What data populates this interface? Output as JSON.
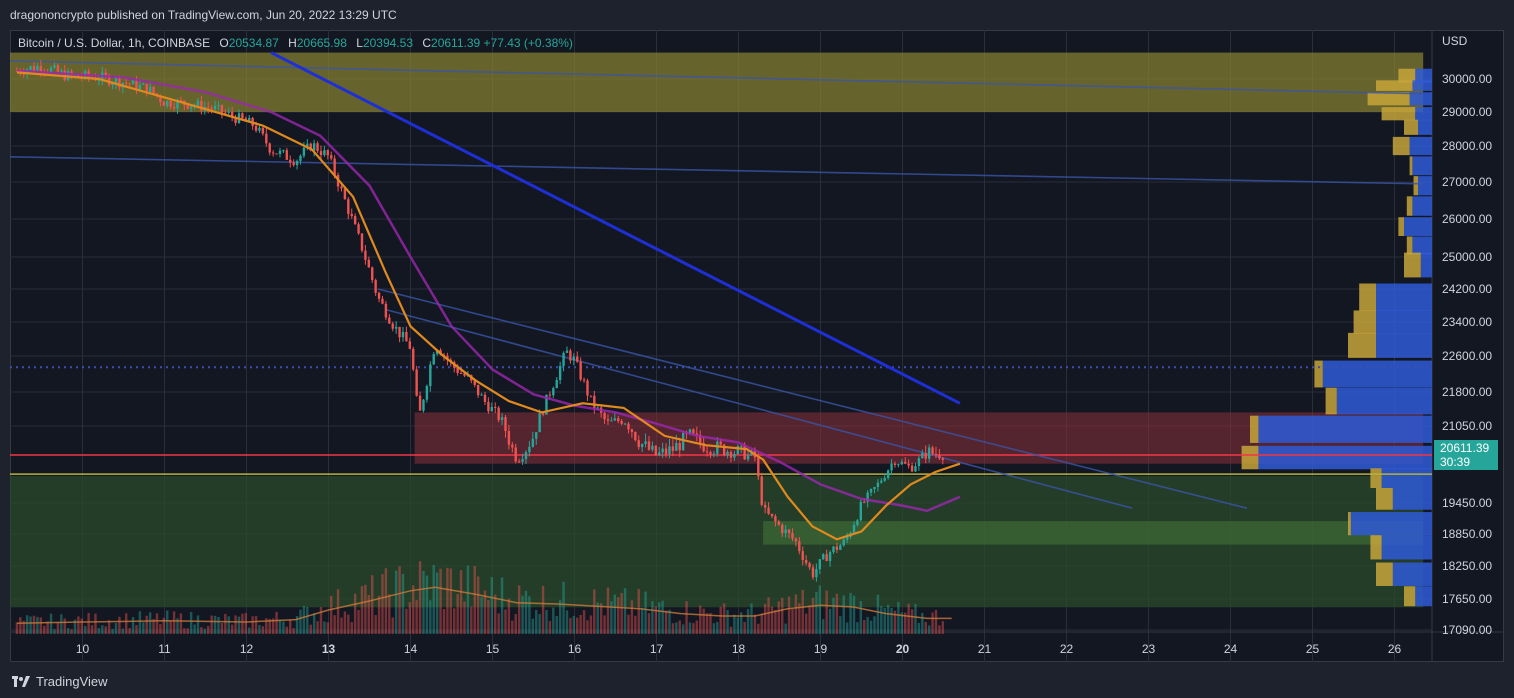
{
  "header": {
    "published": "dragononcrypto published on TradingView.com, Jun 20, 2022 13:29 UTC"
  },
  "legend": {
    "symbol": "Bitcoin / U.S. Dollar, 1h, COINBASE",
    "open_label": "O",
    "open": "20534.87",
    "high_label": "H",
    "high": "20665.98",
    "low_label": "L",
    "low": "20394.53",
    "close_label": "C",
    "close": "20611.39",
    "change": "+77.43 (+0.38%)"
  },
  "price_tag": {
    "price": "20611.39",
    "countdown": "30:39"
  },
  "footer": {
    "brand": "TradingView"
  },
  "colors": {
    "up": "#26a69a",
    "down": "#ef5350",
    "ema_short": "#e08a1e",
    "ema_long": "#9c27b0",
    "trend_blue": "#1e2fd6",
    "resistance_zone": "#7d7a2d",
    "demand_zone": "#2e4a2e",
    "last_price": "#f23645"
  },
  "chart_data": {
    "type": "candlestick",
    "title": "",
    "xlabel": "",
    "ylabel": "USD",
    "x_ticks": [
      {
        "label": "10",
        "day": 10
      },
      {
        "label": "11",
        "day": 11
      },
      {
        "label": "12",
        "day": 12
      },
      {
        "label": "13",
        "day": 13,
        "bold": true
      },
      {
        "label": "14",
        "day": 14
      },
      {
        "label": "15",
        "day": 15
      },
      {
        "label": "16",
        "day": 16
      },
      {
        "label": "17",
        "day": 17
      },
      {
        "label": "18",
        "day": 18
      },
      {
        "label": "19",
        "day": 19
      },
      {
        "label": "20",
        "day": 20,
        "bold": true
      },
      {
        "label": "21",
        "day": 21
      },
      {
        "label": "22",
        "day": 22
      },
      {
        "label": "23",
        "day": 23
      },
      {
        "label": "24",
        "day": 24
      },
      {
        "label": "25",
        "day": 25
      },
      {
        "label": "26",
        "day": 26
      }
    ],
    "y_ticks": [
      "30000.00",
      "29000.00",
      "28000.00",
      "27000.00",
      "26000.00",
      "25000.00",
      "24200.00",
      "23400.00",
      "22600.00",
      "21800.00",
      "21050.00",
      "19450.00",
      "18850.00",
      "18250.00",
      "17650.00",
      "17090.00"
    ],
    "y_axis": "log",
    "last_price": 20611.39,
    "price_path": [
      [
        9.2,
        30250
      ],
      [
        9.5,
        30400
      ],
      [
        9.8,
        30100
      ],
      [
        10.2,
        30050
      ],
      [
        10.5,
        29900
      ],
      [
        10.8,
        29700
      ],
      [
        11.0,
        29300
      ],
      [
        11.3,
        29250
      ],
      [
        11.6,
        29100
      ],
      [
        11.9,
        28800
      ],
      [
        12.1,
        28600
      ],
      [
        12.3,
        27900
      ],
      [
        12.6,
        27600
      ],
      [
        12.8,
        28050
      ],
      [
        13.0,
        27700
      ],
      [
        13.2,
        26500
      ],
      [
        13.4,
        25300
      ],
      [
        13.6,
        24000
      ],
      [
        13.8,
        23300
      ],
      [
        14.0,
        22800
      ],
      [
        14.1,
        21200
      ],
      [
        14.3,
        22900
      ],
      [
        14.5,
        22400
      ],
      [
        14.7,
        22100
      ],
      [
        14.9,
        21600
      ],
      [
        15.1,
        21200
      ],
      [
        15.3,
        20500
      ],
      [
        15.5,
        20900
      ],
      [
        15.7,
        21800
      ],
      [
        15.9,
        22700
      ],
      [
        16.0,
        22500
      ],
      [
        16.2,
        21600
      ],
      [
        16.4,
        21100
      ],
      [
        16.6,
        21200
      ],
      [
        16.8,
        20800
      ],
      [
        17.0,
        20600
      ],
      [
        17.2,
        20700
      ],
      [
        17.4,
        20900
      ],
      [
        17.6,
        20750
      ],
      [
        17.8,
        20700
      ],
      [
        18.0,
        20650
      ],
      [
        18.2,
        20550
      ],
      [
        18.3,
        19300
      ],
      [
        18.5,
        19000
      ],
      [
        18.7,
        18700
      ],
      [
        18.9,
        18100
      ],
      [
        19.1,
        18500
      ],
      [
        19.3,
        18700
      ],
      [
        19.5,
        19400
      ],
      [
        19.7,
        19900
      ],
      [
        19.9,
        20500
      ],
      [
        20.1,
        20300
      ],
      [
        20.3,
        20650
      ],
      [
        20.5,
        20611
      ]
    ],
    "ema_short": [
      [
        9.2,
        30200
      ],
      [
        10.2,
        30000
      ],
      [
        11.2,
        29300
      ],
      [
        12.2,
        28600
      ],
      [
        12.8,
        27900
      ],
      [
        13.3,
        26600
      ],
      [
        13.7,
        24600
      ],
      [
        14.0,
        23300
      ],
      [
        14.4,
        22600
      ],
      [
        14.8,
        22050
      ],
      [
        15.2,
        21600
      ],
      [
        15.6,
        21350
      ],
      [
        16.1,
        21550
      ],
      [
        16.6,
        21450
      ],
      [
        17.1,
        20900
      ],
      [
        17.6,
        20760
      ],
      [
        18.1,
        20700
      ],
      [
        18.3,
        20500
      ],
      [
        18.6,
        19600
      ],
      [
        18.9,
        19000
      ],
      [
        19.2,
        18750
      ],
      [
        19.5,
        18900
      ],
      [
        19.8,
        19400
      ],
      [
        20.1,
        19900
      ],
      [
        20.4,
        20200
      ],
      [
        20.7,
        20400
      ]
    ],
    "ema_long": [
      [
        9.2,
        30250
      ],
      [
        10.5,
        30050
      ],
      [
        11.5,
        29600
      ],
      [
        12.3,
        29000
      ],
      [
        12.9,
        28300
      ],
      [
        13.5,
        26900
      ],
      [
        14.0,
        25000
      ],
      [
        14.5,
        23300
      ],
      [
        15.0,
        22300
      ],
      [
        15.5,
        21750
      ],
      [
        16.0,
        21500
      ],
      [
        16.5,
        21350
      ],
      [
        17.0,
        21100
      ],
      [
        17.5,
        20900
      ],
      [
        18.0,
        20800
      ],
      [
        18.5,
        20450
      ],
      [
        19.0,
        19900
      ],
      [
        19.5,
        19550
      ],
      [
        20.0,
        19400
      ],
      [
        20.3,
        19300
      ],
      [
        20.7,
        19600
      ]
    ],
    "volume_ma": [
      [
        9.2,
        0.18
      ],
      [
        10.0,
        0.2
      ],
      [
        11.0,
        0.22
      ],
      [
        12.0,
        0.2
      ],
      [
        12.6,
        0.24
      ],
      [
        13.0,
        0.4
      ],
      [
        13.5,
        0.55
      ],
      [
        14.0,
        0.72
      ],
      [
        14.3,
        0.78
      ],
      [
        14.8,
        0.66
      ],
      [
        15.3,
        0.52
      ],
      [
        15.8,
        0.5
      ],
      [
        16.3,
        0.46
      ],
      [
        16.8,
        0.42
      ],
      [
        17.3,
        0.34
      ],
      [
        17.8,
        0.3
      ],
      [
        18.2,
        0.3
      ],
      [
        18.6,
        0.42
      ],
      [
        19.0,
        0.48
      ],
      [
        19.4,
        0.45
      ],
      [
        19.8,
        0.34
      ],
      [
        20.3,
        0.26
      ],
      [
        20.6,
        0.26
      ]
    ],
    "zones": [
      {
        "name": "resistance",
        "top": 30800,
        "bottom": 29000,
        "from_day": 9.1,
        "to_day": 26.35
      },
      {
        "name": "current_range",
        "top": 21350,
        "bottom": 20400,
        "from_day": 14.05,
        "to_day": 26.35
      },
      {
        "name": "demand",
        "top": 20100,
        "bottom": 17500,
        "from_day": 9.1,
        "to_day": 26.35
      },
      {
        "name": "demand_inner",
        "top": 19100,
        "bottom": 18650,
        "from_day": 18.3,
        "to_day": 26.35
      }
    ],
    "horizontal_lines": [
      {
        "name": "last_price",
        "price": 20611.39,
        "style": "solid"
      },
      {
        "name": "support",
        "price": 20150,
        "style": "solid"
      },
      {
        "name": "prior_high",
        "price": 22350,
        "style": "dotted"
      }
    ],
    "trendlines": [
      {
        "name": "long_down_blue",
        "points": [
          [
            9.1,
            30550
          ],
          [
            26.35,
            29550
          ]
        ]
      },
      {
        "name": "mid_down_blue",
        "points": [
          [
            9.1,
            27700
          ],
          [
            26.35,
            26950
          ]
        ]
      },
      {
        "name": "steep_down_blue",
        "points": [
          [
            12.3,
            30800
          ],
          [
            20.7,
            21550
          ]
        ]
      },
      {
        "name": "channel_top",
        "points": [
          [
            13.6,
            24200
          ],
          [
            24.2,
            19350
          ]
        ]
      },
      {
        "name": "channel_mid",
        "points": [
          [
            13.7,
            23700
          ],
          [
            22.8,
            19350
          ]
        ]
      }
    ],
    "volume_profile": [
      {
        "price": 30100,
        "up": 0.12,
        "down": 0.06
      },
      {
        "price": 29800,
        "up": 0.2,
        "down": 0.07
      },
      {
        "price": 29400,
        "up": 0.23,
        "down": 0.08
      },
      {
        "price": 28950,
        "up": 0.18,
        "down": 0.06
      },
      {
        "price": 28550,
        "up": 0.1,
        "down": 0.05
      },
      {
        "price": 28000,
        "up": 0.14,
        "down": 0.08
      },
      {
        "price": 27450,
        "up": 0.08,
        "down": 0.07
      },
      {
        "price": 26900,
        "up": 0.04,
        "down": 0.05
      },
      {
        "price": 26350,
        "up": 0.05,
        "down": 0.07
      },
      {
        "price": 25800,
        "up": 0.12,
        "down": 0.1
      },
      {
        "price": 25300,
        "up": 0.09,
        "down": 0.07
      },
      {
        "price": 24800,
        "up": 0.1,
        "down": 0.04
      },
      {
        "price": 24000,
        "up": 0.26,
        "down": 0.2
      },
      {
        "price": 23400,
        "up": 0.28,
        "down": 0.2
      },
      {
        "price": 22850,
        "up": 0.3,
        "down": 0.2
      },
      {
        "price": 22200,
        "up": 0.42,
        "down": 0.39
      },
      {
        "price": 21600,
        "up": 0.38,
        "down": 0.34
      },
      {
        "price": 21000,
        "up": 0.65,
        "down": 0.62
      },
      {
        "price": 20550,
        "up": 0.68,
        "down": 0.62
      },
      {
        "price": 20050,
        "up": 0.22,
        "down": 0.18
      },
      {
        "price": 19550,
        "up": 0.2,
        "down": 0.14
      },
      {
        "price": 19050,
        "up": 0.3,
        "down": 0.29
      },
      {
        "price": 18600,
        "up": 0.22,
        "down": 0.18
      },
      {
        "price": 18100,
        "up": 0.2,
        "down": 0.14
      },
      {
        "price": 17700,
        "up": 0.1,
        "down": 0.06
      }
    ]
  }
}
